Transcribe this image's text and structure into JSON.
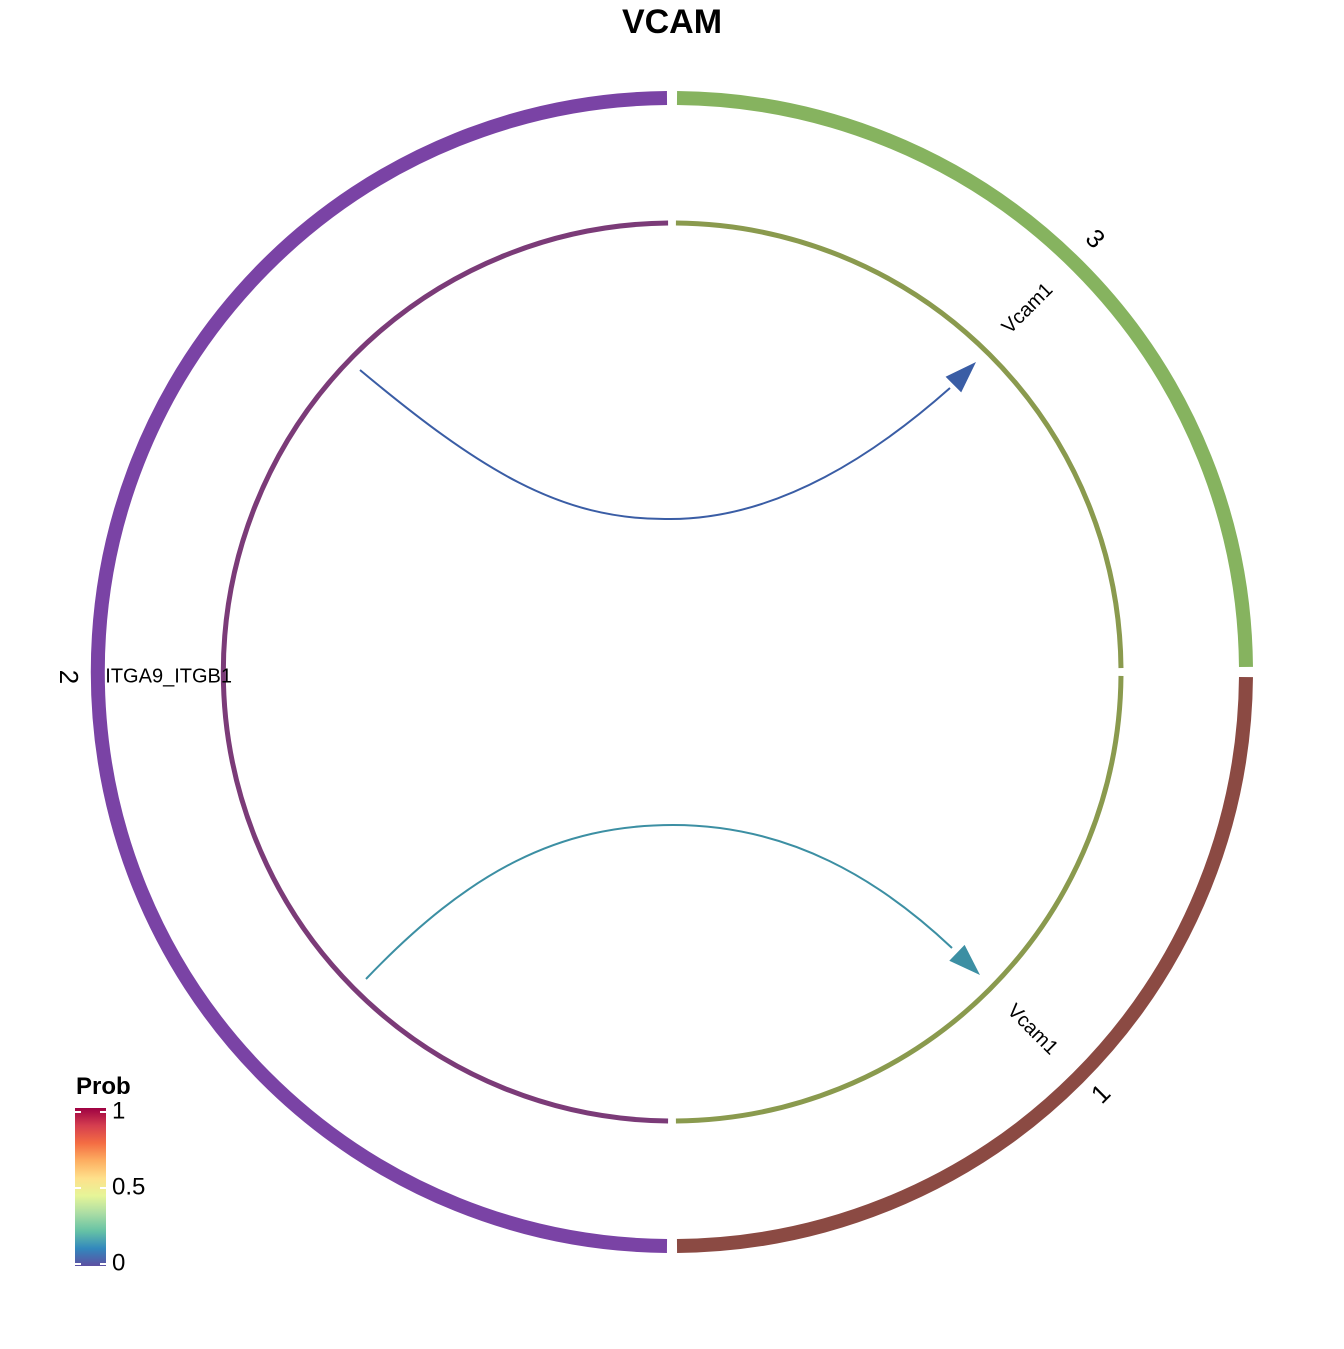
{
  "chart_data": {
    "type": "chord",
    "title": "VCAM",
    "groups": [
      {
        "name": "1",
        "color": "#8B4A43",
        "start_deg": 0,
        "end_deg": 90
      },
      {
        "name": "3",
        "color": "#86B35F",
        "start_deg": 270,
        "end_deg": 360
      },
      {
        "name": "2",
        "color": "#7A43A5",
        "start_deg": 90,
        "end_deg": 270
      }
    ],
    "inner_segments": [
      {
        "group": "1",
        "color": "#8A9A4E",
        "start_deg": 0.5,
        "end_deg": 89.5
      },
      {
        "group": "3",
        "color": "#8A9A4E",
        "start_deg": 270.5,
        "end_deg": 359.5
      },
      {
        "group": "2",
        "color": "#7B3B78",
        "start_deg": 90.5,
        "end_deg": 269.5
      }
    ],
    "genes": [
      {
        "label": "Vcam1",
        "group": "3"
      },
      {
        "label": "Vcam1",
        "group": "1"
      },
      {
        "label": "ITGA9_ITGB1",
        "group": "2"
      }
    ],
    "links": [
      {
        "source": "2",
        "source_gene": "ITGA9_ITGB1",
        "target": "3",
        "target_gene": "Vcam1",
        "prob": 0.05,
        "color": "#3A5DA5"
      },
      {
        "source": "2",
        "source_gene": "ITGA9_ITGB1",
        "target": "1",
        "target_gene": "Vcam1",
        "prob": 0.12,
        "color": "#3C8FA3"
      }
    ],
    "legend": {
      "title": "Prob",
      "ticks": [
        "0",
        "0.5",
        "1"
      ],
      "range": [
        0,
        1
      ],
      "colormap": [
        "#5E4FA2",
        "#3288BD",
        "#66C2A5",
        "#ABDDA4",
        "#E6F598",
        "#FEE08B",
        "#FDAE61",
        "#F46D43",
        "#D53E4F",
        "#9E0142"
      ],
      "placement": "bottom-left"
    }
  }
}
